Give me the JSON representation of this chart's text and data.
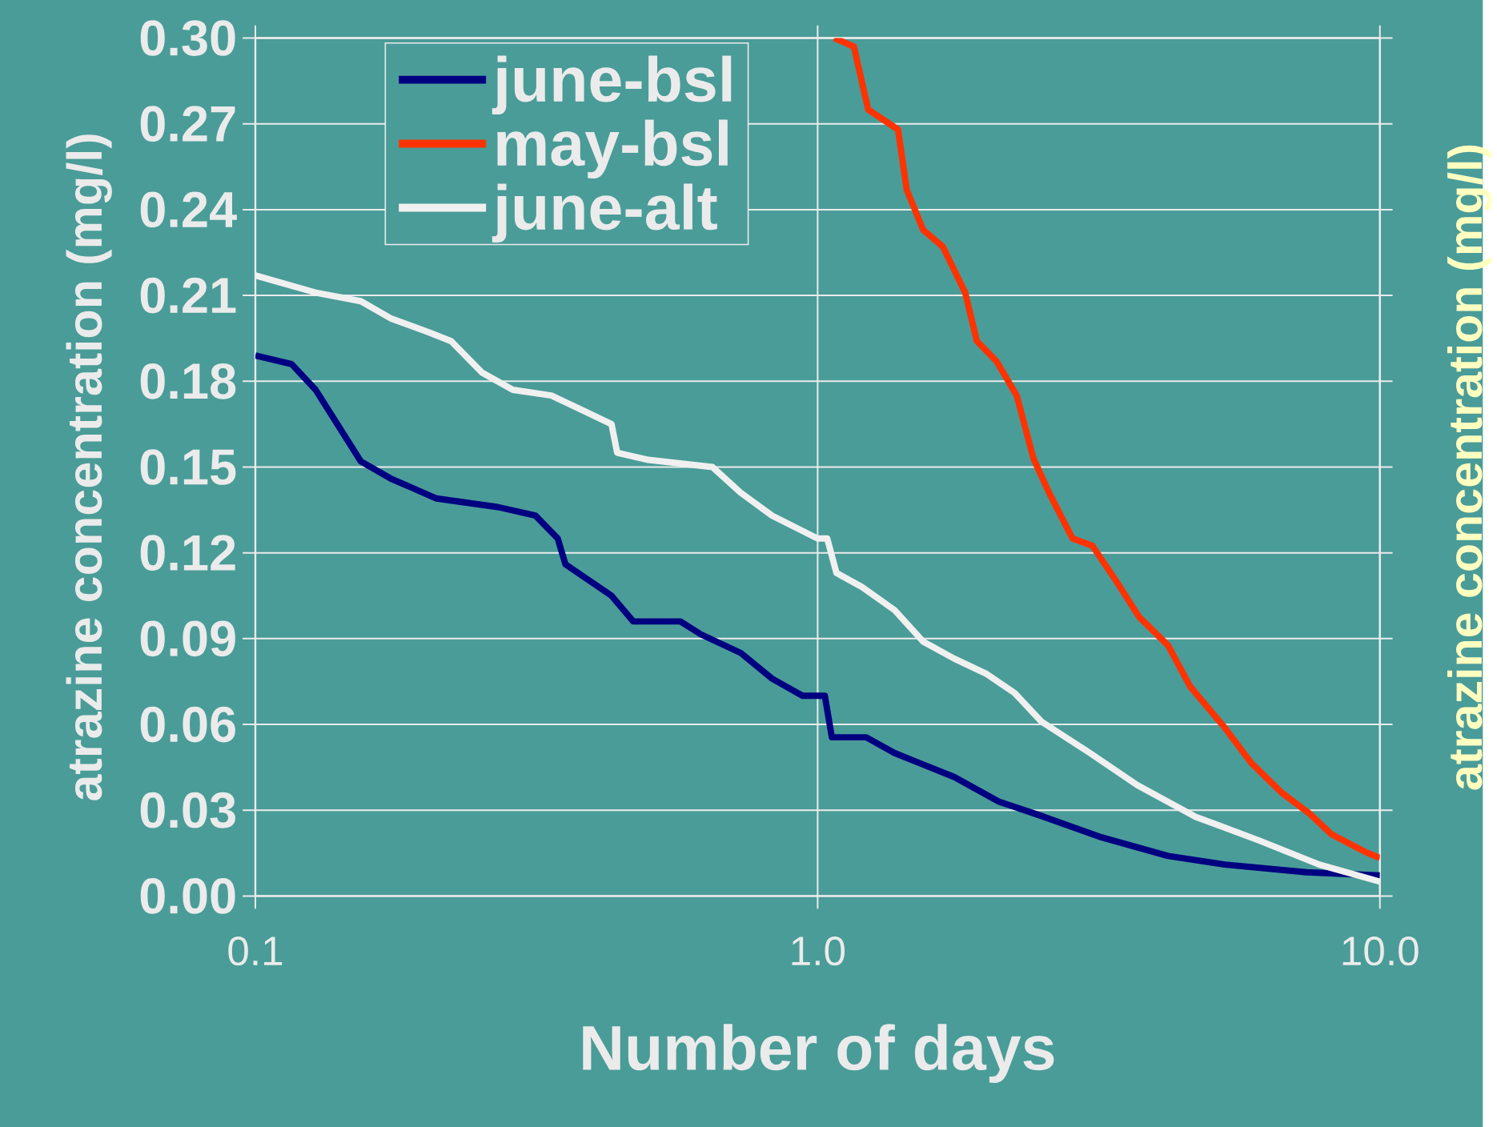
{
  "chart_data": {
    "type": "line",
    "xlabel": "Number of days",
    "ylabel": "atrazine concentration (mg/l)",
    "y2label": "atrazine concentration (mg/l)",
    "log": "x",
    "xlim": [
      0.1,
      10
    ],
    "ylim": [
      0,
      0.3
    ],
    "xticks": [
      {
        "value": 0.1,
        "label": "0.1"
      },
      {
        "value": 1,
        "label": "1.0"
      },
      {
        "value": 10,
        "label": "10.0"
      }
    ],
    "yticks": [
      {
        "value": 0,
        "label": "0.00"
      },
      {
        "value": 0.03,
        "label": "0.03"
      },
      {
        "value": 0.06,
        "label": "0.06"
      },
      {
        "value": 0.09,
        "label": "0.09"
      },
      {
        "value": 0.12,
        "label": "0.12"
      },
      {
        "value": 0.15,
        "label": "0.15"
      },
      {
        "value": 0.18,
        "label": "0.18"
      },
      {
        "value": 0.21,
        "label": "0.21"
      },
      {
        "value": 0.24,
        "label": "0.24"
      },
      {
        "value": 0.27,
        "label": "0.27"
      },
      {
        "value": 0.3,
        "label": "0.30"
      }
    ],
    "grid": true,
    "legend": "top left",
    "marker": "none",
    "line_style": "solid",
    "series": [
      {
        "name": "june-bsl",
        "color": "#000080",
        "x": [
          0.1,
          0.116,
          0.128,
          0.154,
          0.174,
          0.21,
          0.27,
          0.315,
          0.345,
          0.356,
          0.43,
          0.47,
          0.57,
          0.62,
          0.73,
          0.83,
          0.94,
          1.03,
          1.06,
          1.22,
          1.37,
          1.54,
          1.75,
          2.1,
          2.5,
          3.2,
          4.2,
          5.3,
          7.4,
          10
        ],
        "values": [
          0.189,
          0.186,
          0.177,
          0.152,
          0.146,
          0.139,
          0.136,
          0.133,
          0.125,
          0.116,
          0.105,
          0.096,
          0.096,
          0.0915,
          0.085,
          0.076,
          0.07,
          0.07,
          0.0555,
          0.0555,
          0.05,
          0.046,
          0.0416,
          0.033,
          0.028,
          0.0205,
          0.014,
          0.011,
          0.0083,
          0.0072
        ]
      },
      {
        "name": "may-bsl",
        "color": "#ff3300",
        "x": [
          1.07,
          1.16,
          1.23,
          1.39,
          1.44,
          1.54,
          1.67,
          1.83,
          1.92,
          2.08,
          2.26,
          2.42,
          2.58,
          2.84,
          3.08,
          3.4,
          3.73,
          4.2,
          4.6,
          5.3,
          5.9,
          6.7,
          7.5,
          8.2,
          9.4,
          10
        ],
        "values": [
          0.3,
          0.297,
          0.275,
          0.268,
          0.247,
          0.233,
          0.227,
          0.211,
          0.194,
          0.187,
          0.175,
          0.153,
          0.141,
          0.125,
          0.1225,
          0.11,
          0.0976,
          0.0876,
          0.0732,
          0.0588,
          0.0466,
          0.036,
          0.0288,
          0.0216,
          0.0155,
          0.0133
        ]
      },
      {
        "name": "june-alt",
        "color": "#f0f0f0",
        "x": [
          0.1,
          0.128,
          0.154,
          0.174,
          0.204,
          0.223,
          0.253,
          0.287,
          0.336,
          0.39,
          0.43,
          0.44,
          0.5,
          0.65,
          0.73,
          0.83,
          1.0,
          1.04,
          1.08,
          1.2,
          1.37,
          1.54,
          1.75,
          2.0,
          2.24,
          2.5,
          3.05,
          3.7,
          4.7,
          6.1,
          7.8,
          10
        ],
        "values": [
          0.217,
          0.211,
          0.208,
          0.202,
          0.197,
          0.194,
          0.183,
          0.177,
          0.175,
          0.169,
          0.165,
          0.155,
          0.1525,
          0.15,
          0.141,
          0.133,
          0.125,
          0.125,
          0.113,
          0.108,
          0.1,
          0.089,
          0.083,
          0.0776,
          0.071,
          0.061,
          0.05,
          0.0388,
          0.0277,
          0.0194,
          0.011,
          0.005
        ]
      }
    ]
  }
}
